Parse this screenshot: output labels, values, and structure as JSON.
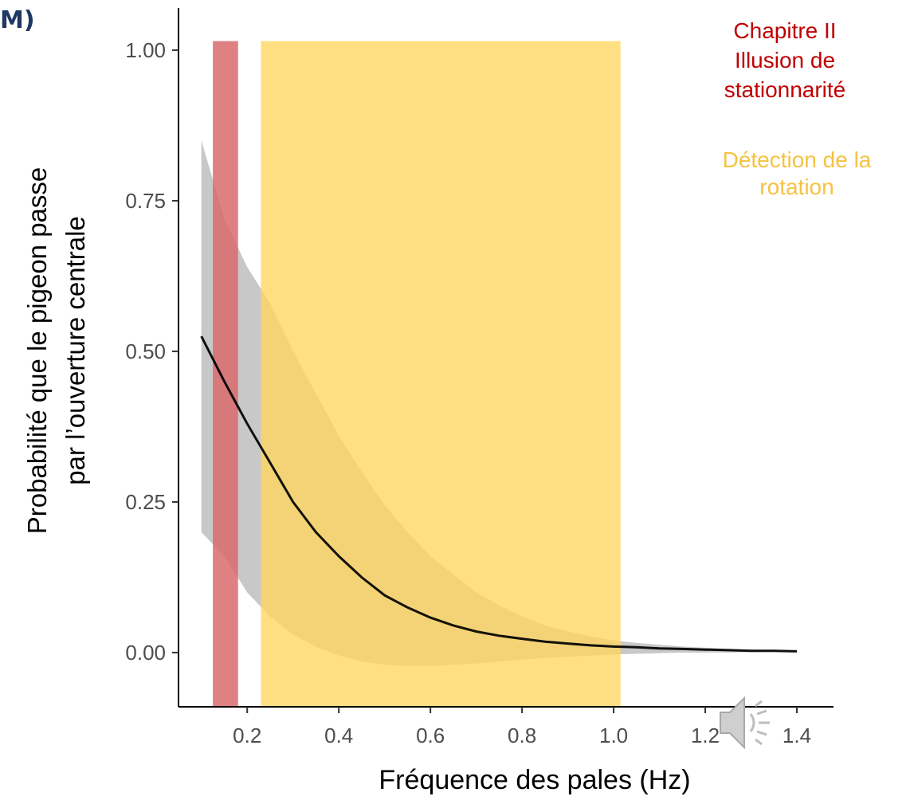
{
  "panel_label": "M)",
  "legend": {
    "red_lines": [
      "Chapitre II",
      "Illusion de",
      "stationnarité"
    ],
    "gold_lines": [
      "Détection de la",
      "rotation"
    ]
  },
  "icons": {
    "audio": "speaker-icon"
  },
  "colors": {
    "red_band": "#d96a6d",
    "gold_band": "#ffd65e",
    "ci_band": "#c8c8c8",
    "line": "#000000",
    "red_text": "#c00000",
    "gold_text": "#f5c242",
    "panel_label": "#1f3864"
  },
  "chart_data": {
    "type": "line",
    "title": "",
    "xlabel": "Fréquence des pales (Hz)",
    "ylabel_lines": [
      "Probabilité que le pigeon passe",
      "par l’ouverture centrale"
    ],
    "xlim": [
      0.05,
      1.48
    ],
    "ylim": [
      -0.09,
      1.07
    ],
    "x_ticks": [
      0.2,
      0.4,
      0.6,
      0.8,
      1.0,
      1.2,
      1.4
    ],
    "x_tick_labels": [
      "0.2",
      "0.4",
      "0.6",
      "0.8",
      "1.0",
      "1.2",
      "1.4"
    ],
    "y_ticks": [
      0.0,
      0.25,
      0.5,
      0.75,
      1.0
    ],
    "y_tick_labels": [
      "0.00",
      "0.25",
      "0.50",
      "0.75",
      "1.00"
    ],
    "grid": false,
    "series": [
      {
        "x": [
          0.1,
          0.15,
          0.2,
          0.25,
          0.3,
          0.35,
          0.4,
          0.45,
          0.5,
          0.55,
          0.6,
          0.65,
          0.7,
          0.75,
          0.8,
          0.85,
          0.9,
          0.95,
          1.0,
          1.05,
          1.1,
          1.15,
          1.2,
          1.25,
          1.3,
          1.35,
          1.4
        ],
        "y": [
          0.525,
          0.45,
          0.38,
          0.315,
          0.25,
          0.2,
          0.16,
          0.125,
          0.095,
          0.075,
          0.058,
          0.045,
          0.035,
          0.028,
          0.023,
          0.018,
          0.015,
          0.012,
          0.01,
          0.009,
          0.007,
          0.006,
          0.005,
          0.004,
          0.003,
          0.003,
          0.002
        ],
        "ci_upper": [
          0.85,
          0.72,
          0.64,
          0.58,
          0.5,
          0.43,
          0.36,
          0.3,
          0.245,
          0.2,
          0.16,
          0.13,
          0.1,
          0.078,
          0.06,
          0.045,
          0.035,
          0.027,
          0.02,
          0.016,
          0.013,
          0.01,
          0.008,
          0.006,
          0.005,
          0.004,
          0.003
        ],
        "ci_lower": [
          0.2,
          0.16,
          0.1,
          0.06,
          0.03,
          0.01,
          -0.005,
          -0.015,
          -0.02,
          -0.022,
          -0.022,
          -0.02,
          -0.018,
          -0.015,
          -0.012,
          -0.009,
          -0.007,
          -0.005,
          -0.003,
          -0.002,
          -0.001,
          0.0,
          0.0,
          0.0,
          0.001,
          0.001,
          0.001
        ]
      }
    ],
    "bands": [
      {
        "x0": 0.125,
        "x1": 0.18,
        "y0": -0.09,
        "y1": 1.015,
        "color": "#d96a6d",
        "opacity": 0.85
      },
      {
        "x0": 0.23,
        "x1": 1.015,
        "y0": -0.09,
        "y1": 1.015,
        "color": "#ffd65e",
        "opacity": 0.78
      }
    ]
  }
}
